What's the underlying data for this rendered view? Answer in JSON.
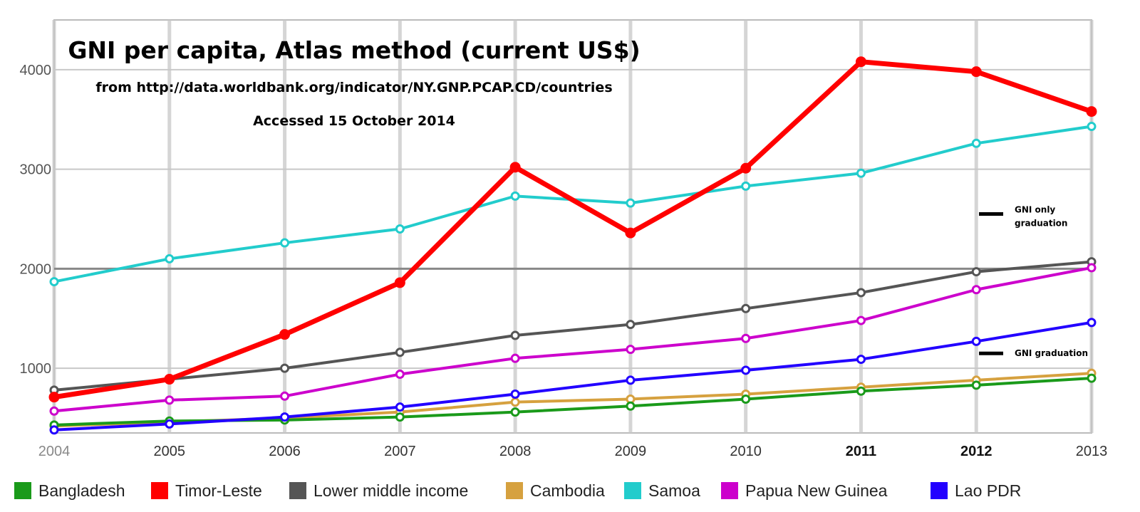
{
  "chart_data": {
    "type": "line",
    "title": "GNI per capita, Atlas method (current US$)",
    "subtitle": "from http://data.worldbank.org/indicator/NY.GNP.PCAP.CD/countries",
    "accessed": "Accessed 15 October 2014",
    "x": [
      "2004",
      "2005",
      "2006",
      "2007",
      "2008",
      "2009",
      "2010",
      "2011",
      "2012",
      "2013"
    ],
    "y_ticks": [
      "1000",
      "2000",
      "3000",
      "4000"
    ],
    "ylim": [
      350,
      4500
    ],
    "grid": true,
    "legend_position": "bottom",
    "series": [
      {
        "name": "Bangladesh",
        "color": "#1a9a1a",
        "values": [
          430,
          470,
          480,
          510,
          560,
          620,
          690,
          770,
          830,
          900
        ]
      },
      {
        "name": "Timor-Leste",
        "color": "#ff0000",
        "values": [
          710,
          890,
          1340,
          1860,
          3020,
          2360,
          3010,
          4080,
          3980,
          3580
        ]
      },
      {
        "name": "Lower middle income",
        "color": "#555555",
        "values": [
          780,
          890,
          1000,
          1160,
          1330,
          1440,
          1600,
          1760,
          1970,
          2070
        ]
      },
      {
        "name": "Cambodia",
        "color": "#d6a13f",
        "values": [
          420,
          460,
          500,
          560,
          660,
          690,
          740,
          810,
          880,
          950
        ]
      },
      {
        "name": "Samoa",
        "color": "#22cccc",
        "values": [
          1870,
          2100,
          2260,
          2400,
          2730,
          2660,
          2830,
          2960,
          3260,
          3430
        ]
      },
      {
        "name": "Papua New Guinea",
        "color": "#cc00cc",
        "values": [
          570,
          680,
          720,
          940,
          1100,
          1190,
          1300,
          1480,
          1790,
          2010
        ]
      },
      {
        "name": "Lao PDR",
        "color": "#2200ff",
        "values": [
          380,
          440,
          510,
          610,
          740,
          880,
          980,
          1090,
          1270,
          1460
        ]
      }
    ],
    "annotations": [
      {
        "lines": [
          "GNI only",
          "graduation"
        ],
        "value": 2550
      },
      {
        "lines": [
          "GNI graduation"
        ],
        "value": 1150
      }
    ]
  }
}
